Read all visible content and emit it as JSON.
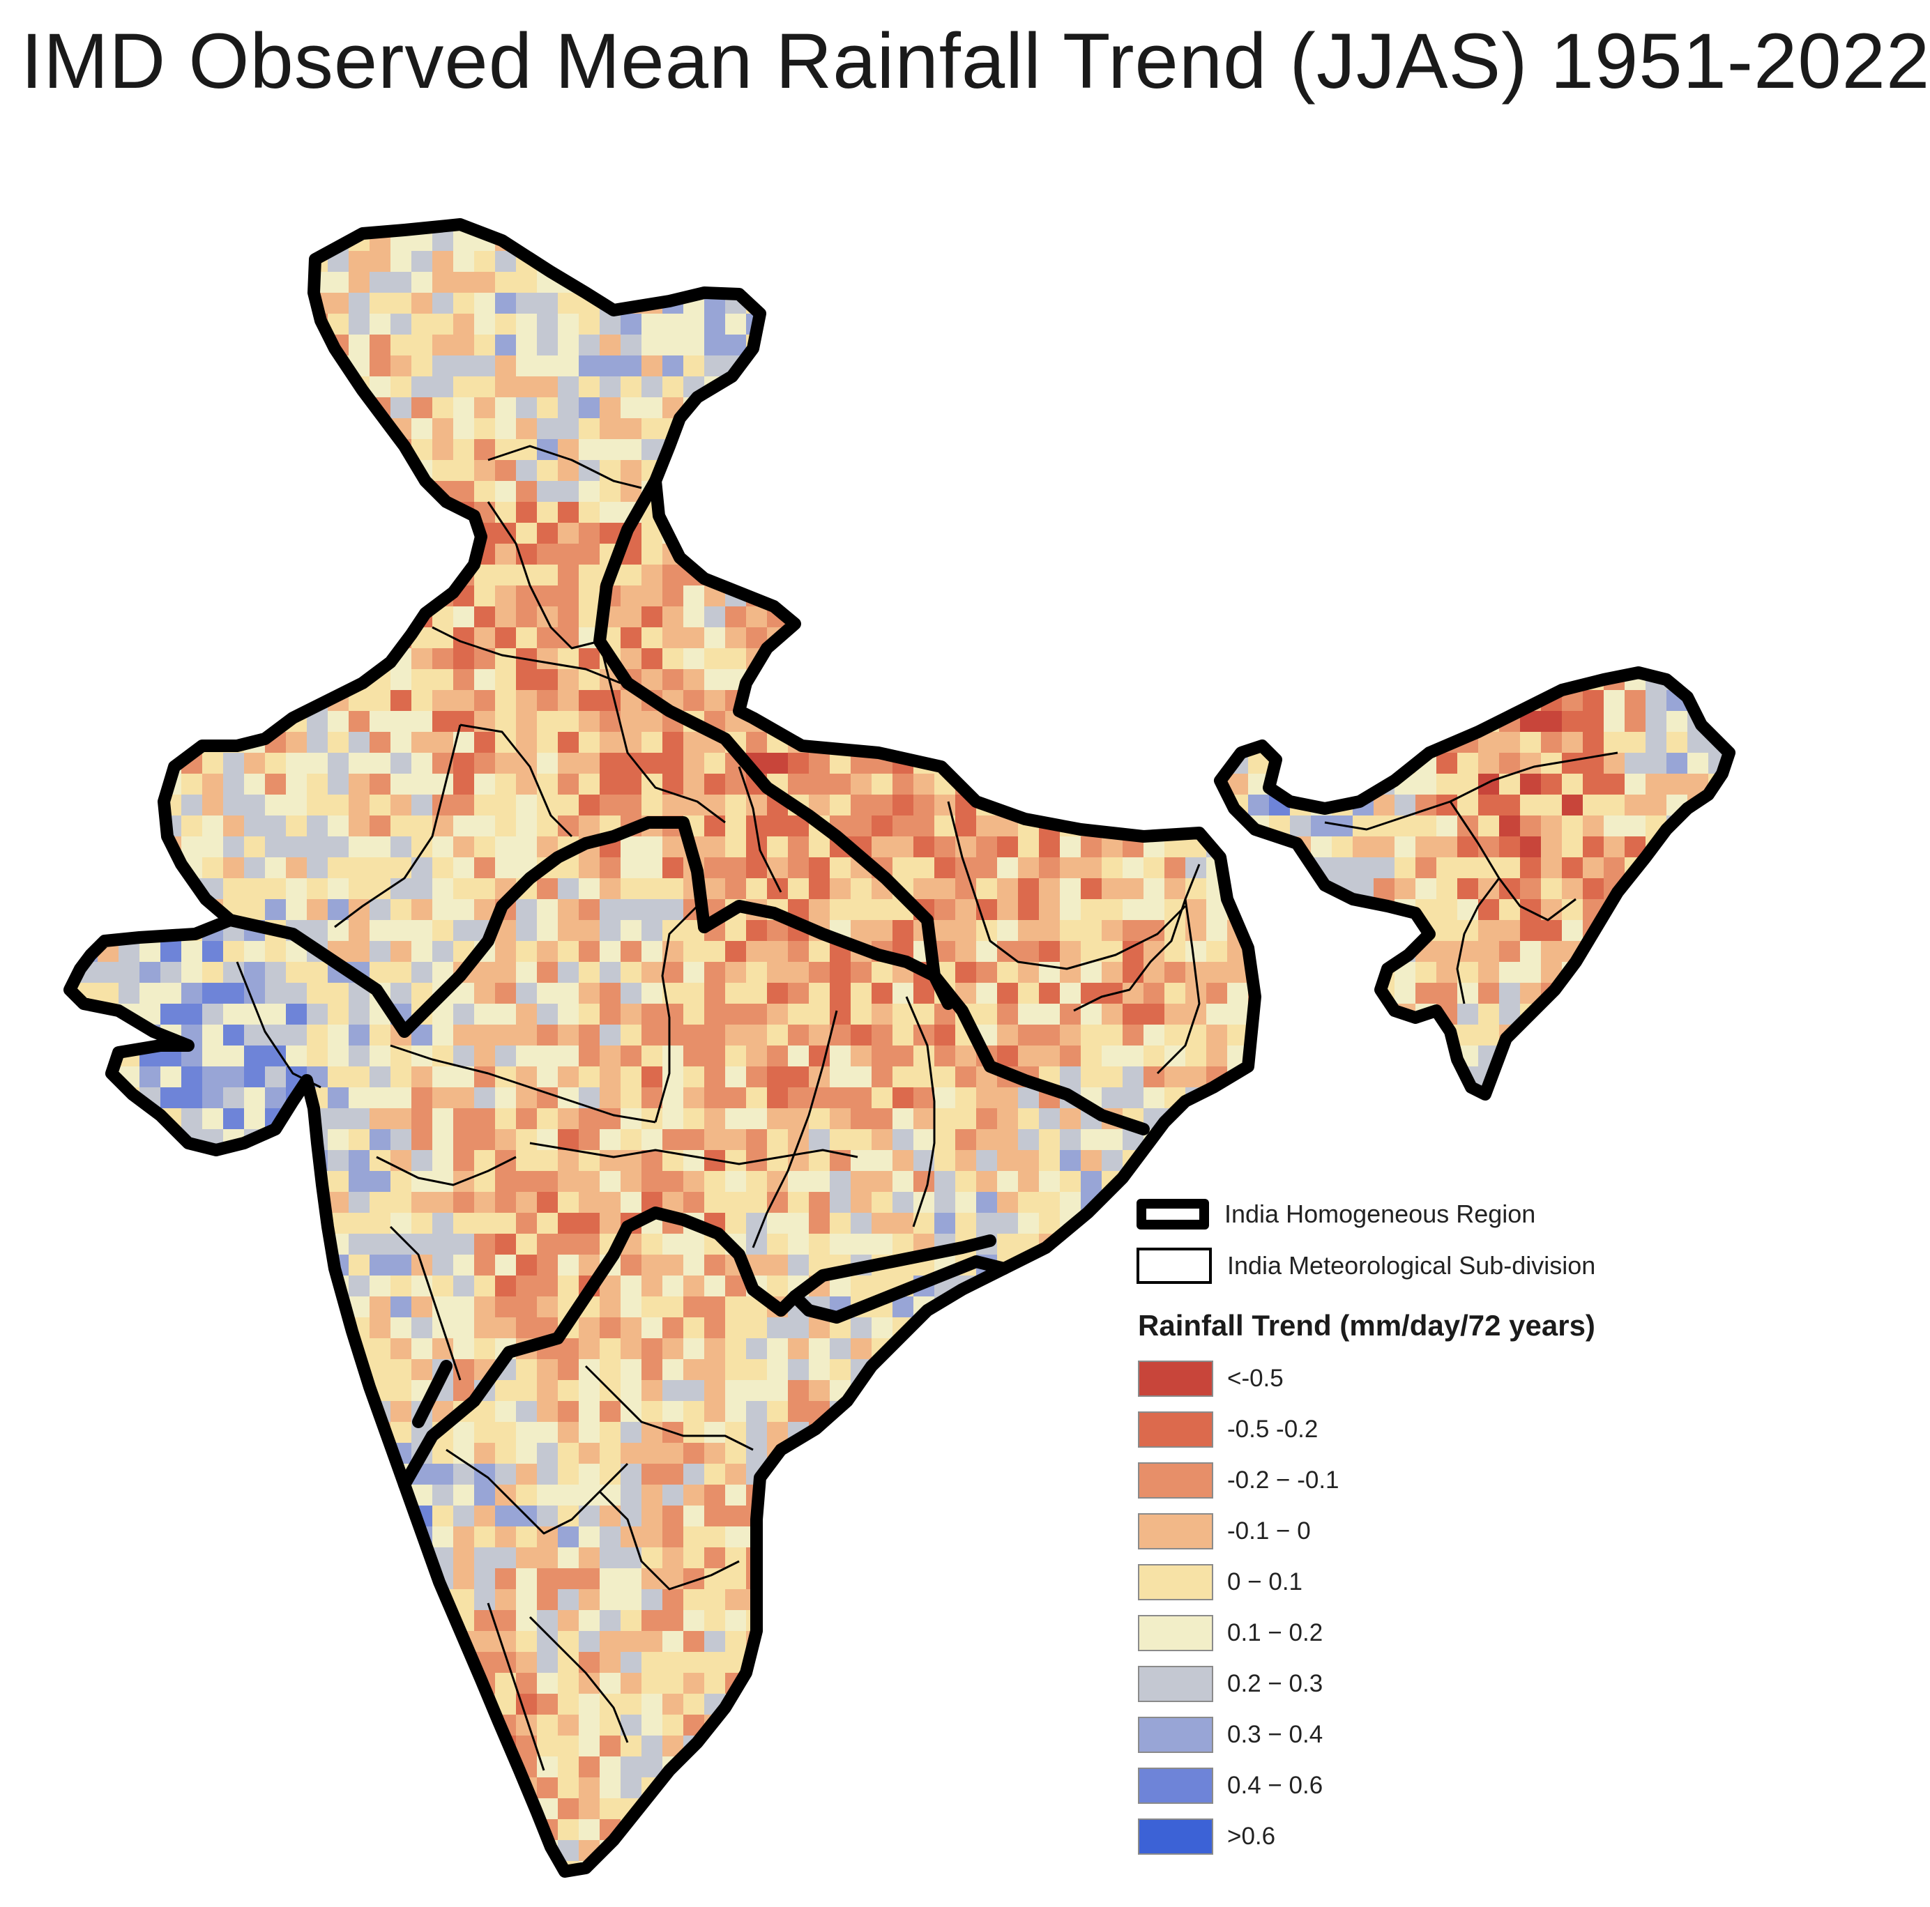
{
  "title": "IMD Observed Mean Rainfall Trend (JJAS) 1951-2022",
  "map": {
    "region": "India",
    "season": "JJAS",
    "period": "1951-2022"
  },
  "legend": {
    "boundaries": [
      {
        "label": "India Homogeneous Region",
        "style": "bold"
      },
      {
        "label": "India Meteorological Sub-division",
        "style": "thin"
      }
    ],
    "heading": "Rainfall Trend (mm/day/72 years)",
    "classes": [
      {
        "label": "<-0.5",
        "color": "#c8453a"
      },
      {
        "label": "-0.5   -0.2",
        "color": "#dc6a4d"
      },
      {
        "label": "-0.2 − -0.1",
        "color": "#e78f69"
      },
      {
        "label": "-0.1 − 0",
        "color": "#f2b888"
      },
      {
        "label": "0 − 0.1",
        "color": "#f7e2a6"
      },
      {
        "label": "0.1 − 0.2",
        "color": "#f2eec8"
      },
      {
        "label": "0.2 − 0.3",
        "color": "#c4c8d2"
      },
      {
        "label": "0.3 − 0.4",
        "color": "#98a5d6"
      },
      {
        "label": "0.4 − 0.6",
        "color": "#6e84d8"
      },
      {
        "label": ">0.6",
        "color": "#3c62d6"
      }
    ]
  }
}
